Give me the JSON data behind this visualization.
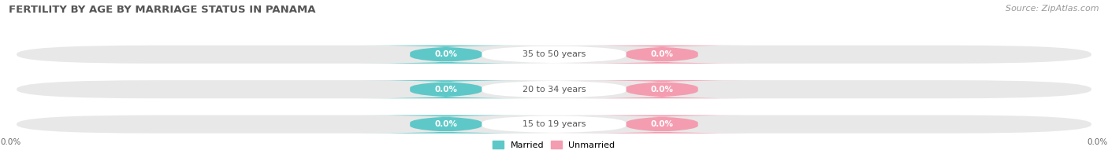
{
  "title": "FERTILITY BY AGE BY MARRIAGE STATUS IN PANAMA",
  "source": "Source: ZipAtlas.com",
  "age_groups": [
    "15 to 19 years",
    "20 to 34 years",
    "35 to 50 years"
  ],
  "married_values": [
    0.0,
    0.0,
    0.0
  ],
  "unmarried_values": [
    0.0,
    0.0,
    0.0
  ],
  "married_color": "#5ec8c8",
  "unmarried_color": "#f49db0",
  "row_bg_color": "#e8e8e8",
  "bar_bg_color": "#f5f5f5",
  "title_fontsize": 9.5,
  "source_fontsize": 8,
  "label_fontsize": 8,
  "value_fontsize": 7.5,
  "fig_bg_color": "#ffffff",
  "legend_married": "Married",
  "legend_unmarried": "Unmarried",
  "axis_tick_label": "0.0%"
}
